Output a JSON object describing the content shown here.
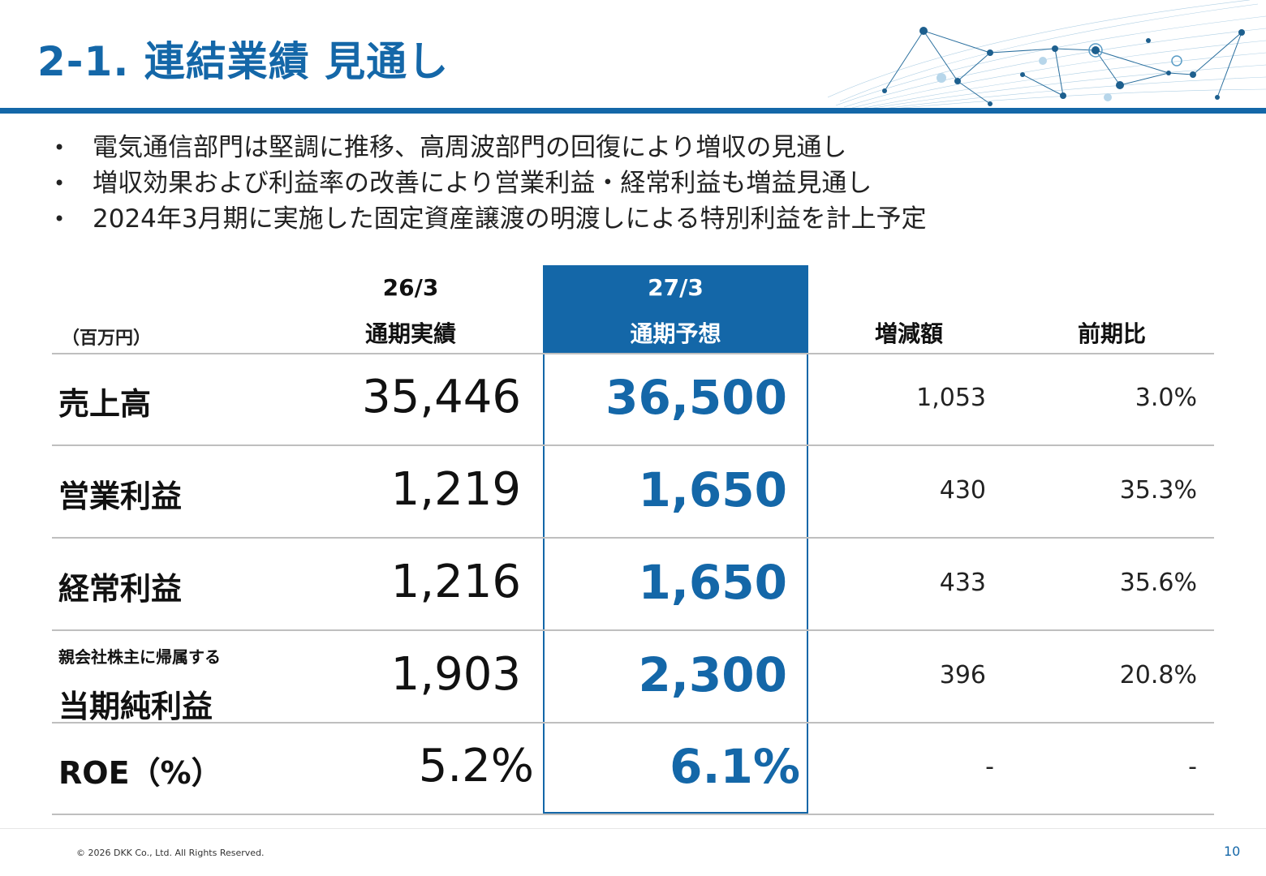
{
  "title": "2-1. 連結業績 見通し",
  "bullets": [
    "電気通信部門は堅調に推移、高周波部門の回復により増収の見通し",
    "増収効果および利益率の改善により営業利益・経常利益も増益見通し",
    "2024年3月期に実施した固定資産譲渡の明渡しによる特別利益を計上予定"
  ],
  "table": {
    "unit": "（百万円）",
    "headers": {
      "prev_period": "26/3",
      "prev_label": "通期実績",
      "fcst_period": "27/3",
      "fcst_label": "通期予想",
      "diff": "増減額",
      "ratio": "前期比"
    },
    "rows": [
      {
        "label": "売上高",
        "prev": "35,446",
        "fcst": "36,500",
        "diff": "1,053",
        "ratio": "3.0%"
      },
      {
        "label": "営業利益",
        "prev": "1,219",
        "fcst": "1,650",
        "diff": "430",
        "ratio": "35.3%"
      },
      {
        "label": "経常利益",
        "prev": "1,216",
        "fcst": "1,650",
        "diff": "433",
        "ratio": "35.6%"
      },
      {
        "sublabel": "親会社株主に帰属する",
        "label": "当期純利益",
        "prev": "1,903",
        "fcst": "2,300",
        "diff": "396",
        "ratio": "20.8%"
      },
      {
        "label": "ROE（%）",
        "prev": "5.2%",
        "fcst": "6.1%",
        "diff": "-",
        "ratio": "-"
      }
    ]
  },
  "footer": {
    "copyright": "© 2026 DKK Co., Ltd. All Rights Reserved.",
    "page": "10"
  },
  "colors": {
    "accent": "#1467a8"
  }
}
